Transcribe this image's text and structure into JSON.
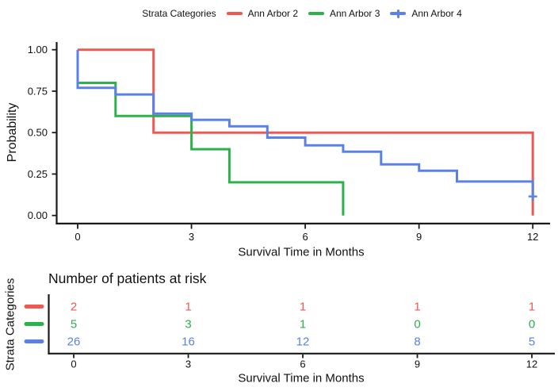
{
  "legend": {
    "title": "Strata Categories",
    "items": [
      {
        "label": "Ann Arbor 2",
        "color": "#EE5A52",
        "has_censor_plus": false
      },
      {
        "label": "Ann Arbor 3",
        "color": "#2DB24B",
        "has_censor_plus": false
      },
      {
        "label": "Ann Arbor 4",
        "color": "#5B81E6",
        "has_censor_plus": true
      }
    ]
  },
  "chart_data": {
    "type": "line",
    "subtype": "kaplan-meier-step",
    "xlabel": "Survival Time in Months",
    "ylabel": "Probability",
    "xlim": [
      0,
      12
    ],
    "ylim": [
      0,
      1
    ],
    "x_ticks": [
      0,
      3,
      6,
      9,
      12
    ],
    "y_ticks": [
      "1.00",
      "0.75",
      "0.50",
      "0.25",
      "0.00"
    ],
    "grid": "off",
    "legend_position": "top",
    "series": [
      {
        "name": "Ann Arbor 2",
        "color": "#EE5A52",
        "points": [
          [
            0,
            1.0
          ],
          [
            2,
            1.0
          ],
          [
            2,
            0.5
          ],
          [
            12,
            0.5
          ],
          [
            12,
            0.0
          ]
        ]
      },
      {
        "name": "Ann Arbor 3",
        "color": "#2DB24B",
        "points": [
          [
            0,
            0.8
          ],
          [
            1,
            0.8
          ],
          [
            1,
            0.6
          ],
          [
            3,
            0.6
          ],
          [
            3,
            0.4
          ],
          [
            4,
            0.4
          ],
          [
            4,
            0.2
          ],
          [
            7,
            0.2
          ],
          [
            7,
            0.0
          ]
        ]
      },
      {
        "name": "Ann Arbor 4",
        "color": "#5B81E6",
        "points": [
          [
            0,
            1.0
          ],
          [
            0,
            0.77
          ],
          [
            1,
            0.77
          ],
          [
            1,
            0.73
          ],
          [
            2,
            0.73
          ],
          [
            2,
            0.615
          ],
          [
            3,
            0.615
          ],
          [
            3,
            0.577
          ],
          [
            4,
            0.577
          ],
          [
            4,
            0.538
          ],
          [
            5,
            0.538
          ],
          [
            5,
            0.47
          ],
          [
            6,
            0.47
          ],
          [
            6,
            0.423
          ],
          [
            7,
            0.423
          ],
          [
            7,
            0.385
          ],
          [
            8,
            0.385
          ],
          [
            8,
            0.308
          ],
          [
            9,
            0.308
          ],
          [
            9,
            0.27
          ],
          [
            10,
            0.27
          ],
          [
            10,
            0.205
          ],
          [
            12,
            0.205
          ],
          [
            12,
            0.09
          ]
        ],
        "censor_marks": [
          [
            12,
            0.115
          ]
        ]
      }
    ]
  },
  "risk_table": {
    "title": "Number of patients at risk",
    "y_axis_label": "Strata Categories",
    "xlabel": "Survival Time in Months",
    "x_ticks": [
      0,
      3,
      6,
      9,
      12
    ],
    "rows": [
      {
        "name": "Ann Arbor 2",
        "color": "#EE5A52",
        "counts": [
          2,
          1,
          1,
          1,
          1
        ]
      },
      {
        "name": "Ann Arbor 3",
        "color": "#2DB24B",
        "counts": [
          5,
          3,
          1,
          0,
          0
        ]
      },
      {
        "name": "Ann Arbor 4",
        "color": "#5B81E6",
        "counts": [
          26,
          16,
          12,
          8,
          5
        ]
      }
    ]
  },
  "colors": {
    "axis": "#1a1a1a",
    "tick_text": "#111111",
    "background": "#ffffff"
  }
}
